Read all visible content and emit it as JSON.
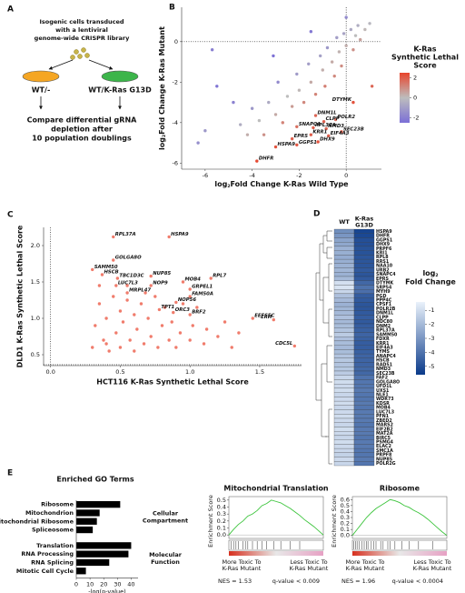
{
  "diagram": {
    "panel_label": "A",
    "intro": [
      "Isogenic cells transduced",
      "with a lentiviral",
      "genome-wide CRISPR library"
    ],
    "left_dish": "WT/-",
    "right_dish": "WT/K-Ras G13D",
    "outcome": [
      "Compare differential gRNA",
      "depletion after",
      "10 population doublings"
    ]
  },
  "chart_data": [
    {
      "type": "scatter",
      "panel_label": "B",
      "x": [
        0.3,
        -1.3,
        -0.95,
        -0.45,
        -2.1,
        -1.4,
        -0.85,
        -0.2,
        -1.5,
        -0.75,
        -1.2,
        -2.3,
        -2.1,
        -3.0,
        -3.8,
        -6.3,
        -5.5,
        -4.8,
        -4.5,
        -4.2,
        -4.0,
        -3.7,
        -3.5,
        -3.3,
        -3.0,
        -2.9,
        -2.7,
        -2.5,
        -2.3,
        -2.1,
        -2.0,
        -1.8,
        -1.6,
        -1.5,
        -1.3,
        -1.1,
        -1.0,
        -0.9,
        -0.8,
        -0.6,
        -0.5,
        -0.4,
        -0.3,
        -0.2,
        -0.1,
        0.0,
        0.2,
        0.3,
        0.4,
        0.5,
        0.6,
        0.8,
        1.0,
        0.0,
        -1.5,
        -3.1,
        -5.7,
        1.1,
        -6.0
      ],
      "y": [
        -3.0,
        -3.65,
        -3.95,
        -3.85,
        -4.2,
        -4.25,
        -4.3,
        -4.45,
        -4.6,
        -4.65,
        -4.95,
        -4.8,
        -5.1,
        -5.2,
        -5.9,
        -5.0,
        -2.2,
        -3.0,
        -4.1,
        -4.6,
        -3.3,
        -3.9,
        -4.6,
        -3.0,
        -3.6,
        -2.0,
        -4.0,
        -2.7,
        -3.2,
        -1.6,
        -2.4,
        -3.0,
        -1.1,
        -2.0,
        -2.6,
        -0.7,
        -1.4,
        -2.2,
        -0.3,
        -1.0,
        -1.7,
        0.2,
        -0.5,
        -1.2,
        0.4,
        -0.2,
        0.6,
        -0.4,
        0.3,
        0.8,
        0.1,
        0.6,
        0.9,
        1.2,
        0.5,
        -0.7,
        -0.4,
        -2.2,
        -4.4
      ],
      "score": [
        2.2,
        1.8,
        1.9,
        1.6,
        1.6,
        2.0,
        1.8,
        1.9,
        2.0,
        2.0,
        2.2,
        1.9,
        2.1,
        2.2,
        2.4,
        -1.5,
        -2.3,
        -1.9,
        -0.5,
        0.3,
        -1.2,
        0,
        0.9,
        -0.6,
        0.4,
        -1.6,
        1.2,
        0,
        0.7,
        -1.1,
        0.1,
        1.1,
        -1.0,
        0.4,
        1.2,
        -0.9,
        0.3,
        1.3,
        -1.2,
        0.4,
        1.1,
        -1.0,
        0.2,
        1.0,
        -0.8,
        0.3,
        -0.6,
        0.9,
        0,
        -0.5,
        0.6,
        0.1,
        -0.2,
        -1.6,
        -2.2,
        -2.4,
        -2.0,
        1.8,
        -1.2
      ],
      "labels": [
        "DTYMK",
        "DNM1L",
        "CLPP",
        "POLR2",
        "SNAPC4",
        "RPL37A",
        "NMD3",
        "SEC23B",
        "KRR1",
        "EIF4A3",
        "DHX9",
        "EPRS",
        "GGPS1",
        "HSPA9",
        "DHFR",
        null,
        null,
        null,
        null,
        null,
        null,
        null,
        null,
        null,
        null,
        null,
        null,
        null,
        null,
        null,
        null,
        null,
        null,
        null,
        null,
        null,
        null,
        null,
        null,
        null,
        null,
        null,
        null,
        null,
        null,
        null,
        null,
        null,
        null,
        null,
        null,
        null,
        null,
        null,
        null,
        null,
        null,
        null,
        null
      ],
      "colorscale": [
        "#7b6fd6",
        "#bdbdbd",
        "#e8442c"
      ],
      "clim": [
        -2.5,
        2.5
      ],
      "cticks": [
        -2,
        0,
        2
      ],
      "colorbar_title": [
        "K-Ras",
        "Synthetic Lethal",
        "Score"
      ],
      "xlim": [
        -7,
        1.5
      ],
      "ylim": [
        -6.3,
        1.7
      ],
      "xticks": [
        -6,
        -4,
        -2,
        0
      ],
      "yticks": [
        -6,
        -4,
        -2,
        0
      ],
      "xlabel": {
        "text": "log",
        "sub": "2",
        "rest": "Fold Change K-Ras Wild Type"
      },
      "ylabel": {
        "text": "log",
        "sub": "2",
        "rest": "Fold Change K-Ras Mutant"
      },
      "zero_lines": true
    },
    {
      "type": "scatter",
      "panel_label": "C",
      "x": [
        0.45,
        0.85,
        0.45,
        0.3,
        0.37,
        0.48,
        0.72,
        0.95,
        1.15,
        0.47,
        0.72,
        1.0,
        0.55,
        1.0,
        0.9,
        0.78,
        0.88,
        1.0,
        1.45,
        1.6,
        1.75,
        0.3,
        0.32,
        0.35,
        0.38,
        0.4,
        0.42,
        0.45,
        0.47,
        0.5,
        0.5,
        0.52,
        0.55,
        0.57,
        0.6,
        0.6,
        0.62,
        0.65,
        0.67,
        0.7,
        0.72,
        0.75,
        0.77,
        0.8,
        0.82,
        0.85,
        0.87,
        0.9,
        0.93,
        0.95,
        1.0,
        1.02,
        1.05,
        1.1,
        1.12,
        1.2,
        1.25,
        1.3,
        1.35,
        0.35,
        0.55,
        0.4,
        0.68
      ],
      "y": [
        2.12,
        2.12,
        1.8,
        1.67,
        1.6,
        1.55,
        1.58,
        1.5,
        1.55,
        1.45,
        1.45,
        1.4,
        1.35,
        1.3,
        1.22,
        1.12,
        1.08,
        1.05,
        1.0,
        0.98,
        0.62,
        0.6,
        0.9,
        1.2,
        0.7,
        1.0,
        0.55,
        1.3,
        0.8,
        1.1,
        0.6,
        0.95,
        1.25,
        0.7,
        1.05,
        0.55,
        0.85,
        1.2,
        0.65,
        1.0,
        0.75,
        1.3,
        0.6,
        0.9,
        1.15,
        0.7,
        0.95,
        0.6,
        0.8,
        1.2,
        0.7,
        0.9,
        1.15,
        0.65,
        0.85,
        0.75,
        0.95,
        0.6,
        0.8,
        1.45,
        1.45,
        0.65,
        1.35
      ],
      "labels": [
        "RPL37A",
        "HSPA9",
        "GOLGA8O",
        "SAMM50",
        "HSCB",
        "TBC1D3C",
        "NUP85",
        "MOB4",
        "RPL7",
        "LUC7L3",
        "NOP9",
        "GRPEL1",
        "MRPL47",
        "FAM50A",
        "NOP56",
        "TPT1",
        "ORC3",
        "BRF2",
        "EEFSEC",
        "ERH",
        "CDC5L",
        null,
        null,
        null,
        null,
        null,
        null,
        null,
        null,
        null,
        null,
        null,
        null,
        null,
        null,
        null,
        null,
        null,
        null,
        null,
        null,
        null,
        null,
        null,
        null,
        null,
        null,
        null,
        null,
        null,
        null,
        null,
        null,
        null,
        null,
        null,
        null,
        null,
        null,
        null,
        null,
        null,
        null
      ],
      "color": "#f07c6c",
      "xlim": [
        -0.05,
        1.8
      ],
      "ylim": [
        0.35,
        2.25
      ],
      "xticks": [
        {
          "value": 0,
          "label": "0.0"
        },
        0.5,
        {
          "value": 1,
          "label": "1.0"
        },
        1.5
      ],
      "yticks": [
        0.5,
        {
          "value": 1,
          "label": "1.0"
        },
        1.5,
        {
          "value": 2,
          "label": "2.0"
        }
      ],
      "xlabel": "HCT116 K-Ras Synthetic Lethal Score",
      "ylabel": "DLD1 K-Ras Synthetic Lethal Score",
      "zero_lines": true
    },
    {
      "type": "heatmap",
      "panel_label": "D",
      "categories": [
        "HSPA9",
        "DHFR",
        "GGPS1",
        "DHX9",
        "PRPF6",
        "KRI1",
        "RPL8",
        "RRS1",
        "NAA10",
        "URB2",
        "SNAPC4",
        "EPRS",
        "DTYMK",
        "SRP54",
        "MYH9",
        "PGD",
        "PPP4C",
        "CPSF1",
        "POLR2B",
        "DNM1L",
        "CLPP",
        "NDC80",
        "DNM2",
        "RPL37A",
        "SAMM50",
        "FDXR",
        "KRR1",
        "EIF4A3",
        "TYMS",
        "ANAPC4",
        "HSCB",
        "RAD51",
        "NMD3",
        "SEC23B",
        "FAF2",
        "GOLGA8O",
        "UFD1L",
        "UXS1",
        "NLE1",
        "WDR73",
        "KDSR",
        "MOB4",
        "LUC7L3",
        "PFN1",
        "ZBED2",
        "MARS2",
        "EIF2B2",
        "MAT2A",
        "BIRC5",
        "PSMG4",
        "ELAC2",
        "SMC1A",
        "PRPF8",
        "NUP85",
        "POLR2G"
      ],
      "series": [
        {
          "name": "WT",
          "values": [
            -3.2,
            -3.0,
            -2.6,
            -2.5,
            -2.2,
            -2.3,
            -2.4,
            -2.3,
            -2.2,
            -2.1,
            -2.2,
            -2.0,
            -0.9,
            -0.8,
            -1.2,
            -1.8,
            -2.0,
            -2.2,
            -2.1,
            -2.0,
            -1.8,
            -2.0,
            -1.9,
            -1.7,
            -1.5,
            -1.8,
            -1.9,
            -2.0,
            -1.9,
            -1.7,
            -1.6,
            -1.7,
            -1.6,
            -1.5,
            -1.2,
            -1.0,
            -1.1,
            -1.0,
            -1.2,
            -1.1,
            -1.0,
            -1.2,
            -1.1,
            -1.0,
            -1.1,
            -1.2,
            -1.0,
            -1.1,
            -1.2,
            -1.0,
            -1.1,
            -1.2,
            -1.3,
            -1.1,
            -1.2
          ]
        },
        {
          "name": "K-Ras G13D",
          "values": [
            -5.3,
            -5.2,
            -5.0,
            -5.0,
            -4.9,
            -4.9,
            -4.8,
            -4.8,
            -4.8,
            -4.7,
            -4.8,
            -4.7,
            -4.3,
            -4.0,
            -4.1,
            -4.6,
            -4.7,
            -4.8,
            -4.8,
            -4.7,
            -4.6,
            -4.7,
            -4.6,
            -4.5,
            -4.4,
            -4.5,
            -4.6,
            -4.6,
            -4.5,
            -4.4,
            -4.4,
            -4.4,
            -4.3,
            -4.3,
            -4.0,
            -3.9,
            -3.9,
            -3.8,
            -3.9,
            -3.9,
            -3.8,
            -3.9,
            -3.8,
            -3.8,
            -3.8,
            -3.9,
            -3.8,
            -3.8,
            -3.9,
            -3.8,
            -3.8,
            -3.9,
            -3.9,
            -3.8,
            -3.9
          ]
        }
      ],
      "colorscale": [
        "#0a3a8a",
        "#eaf2fb"
      ],
      "clim": [
        -5.6,
        -0.4
      ],
      "cticks": [
        -1,
        -2,
        -3,
        -4,
        -5
      ],
      "colorbar_title": {
        "text": "log",
        "sub": "2",
        "rest": "Fold Change"
      }
    },
    {
      "type": "bar",
      "panel_label": "E",
      "title": "Enriched GO Terms",
      "color": "#000000",
      "groups": [
        {
          "name": "Cellular Compartment",
          "categories": [
            "Ribosome",
            "Mitochondrion",
            "Mitochondrial Ribosome",
            "Spliceosome"
          ],
          "values": [
            32,
            17,
            15,
            12
          ]
        },
        {
          "name": "Molecular Function",
          "categories": [
            "Translation",
            "RNA Processing",
            "RNA Splicing",
            "Mitotic Cell Cycle"
          ],
          "values": [
            40,
            38,
            24,
            7
          ]
        }
      ],
      "xlim": [
        0,
        45
      ],
      "xticks": [
        0,
        10,
        20,
        30,
        40
      ],
      "xlabel": "-log(p-value)"
    },
    {
      "type": "line",
      "title": "Mitochondrial Translation",
      "ylabel": "Enrichment Score",
      "color": "#3cc43c",
      "x": [
        0,
        1,
        2,
        3,
        4,
        5,
        6,
        7,
        8,
        9,
        10,
        11,
        12,
        13,
        14,
        15,
        16,
        17,
        18,
        19,
        20
      ],
      "values": [
        0,
        0.08,
        0.15,
        0.2,
        0.27,
        0.3,
        0.35,
        0.42,
        0.45,
        0.5,
        0.48,
        0.46,
        0.42,
        0.38,
        0.33,
        0.28,
        0.22,
        0.17,
        0.12,
        0.06,
        0
      ],
      "xlim": [
        0,
        20
      ],
      "ylim": [
        -0.05,
        0.55
      ],
      "yticks": [
        {
          "value": 0,
          "label": "0.0"
        },
        0.1,
        0.2,
        0.3,
        0.4,
        0.5
      ],
      "hits": [
        0.5,
        1,
        1.5,
        2,
        3,
        3.5,
        4,
        5,
        6,
        7,
        8,
        9.5,
        11,
        13,
        15
      ],
      "left_label": [
        "More Toxic To",
        "K-Ras Mutant"
      ],
      "right_label": [
        "Less Toxic To",
        "K-Ras Mutant"
      ],
      "stats": [
        "NES = 1.53",
        "q-value < 0.009"
      ]
    },
    {
      "type": "line",
      "title": "Ribosome",
      "ylabel": "Enrichment Score",
      "color": "#3cc43c",
      "x": [
        0,
        1,
        2,
        3,
        4,
        5,
        6,
        7,
        8,
        9,
        10,
        11,
        12,
        13,
        14,
        15,
        16,
        17,
        18,
        19,
        20
      ],
      "values": [
        0,
        0.1,
        0.2,
        0.3,
        0.38,
        0.45,
        0.5,
        0.55,
        0.6,
        0.58,
        0.55,
        0.5,
        0.47,
        0.42,
        0.38,
        0.33,
        0.27,
        0.2,
        0.13,
        0.06,
        0
      ],
      "xlim": [
        0,
        20
      ],
      "ylim": [
        -0.05,
        0.65
      ],
      "yticks": [
        {
          "value": 0,
          "label": "0.0"
        },
        0.1,
        0.2,
        0.3,
        0.4,
        0.5,
        0.6
      ],
      "hits": [
        0.3,
        0.7,
        1,
        1.4,
        2,
        2.5,
        3,
        3.3,
        4,
        4.5,
        5,
        6,
        6.5,
        7.5,
        8,
        9,
        10.5,
        12,
        14,
        17
      ],
      "left_label": [
        "More Toxic To",
        "K-Ras Mutant"
      ],
      "right_label": [
        "Less Toxic To",
        "K-Ras Mutant"
      ],
      "stats": [
        "NES = 1.96",
        "q-value < 0.0004"
      ]
    }
  ]
}
